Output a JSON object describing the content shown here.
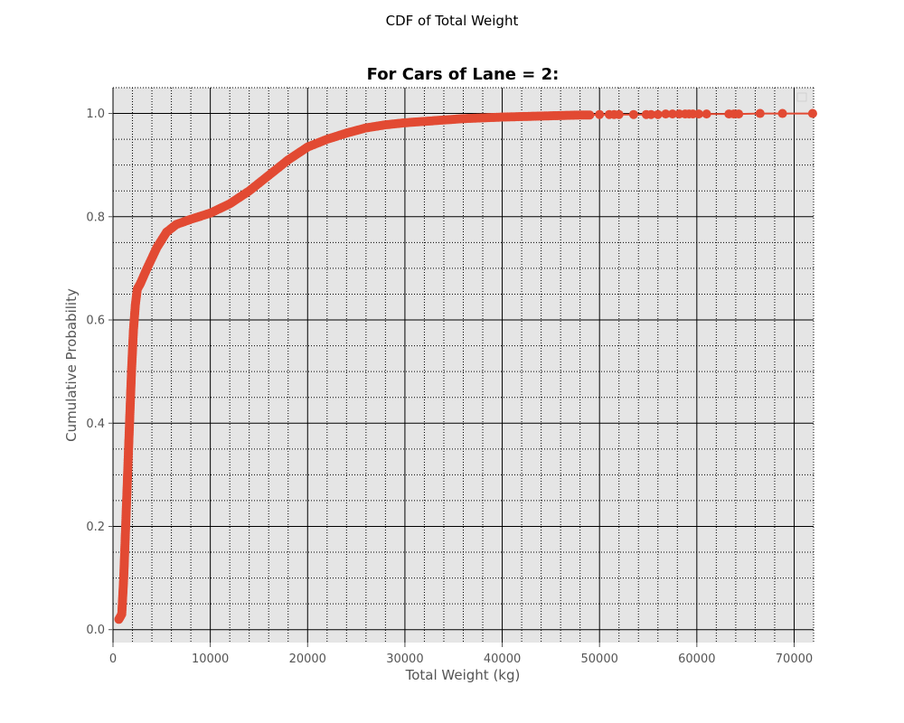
{
  "suptitle": "CDF of Total Weight",
  "colors": {
    "series": "#e24a33",
    "plot_bg": "#e5e5e5",
    "grid": "#000000",
    "tick_text": "#555555"
  },
  "chart_data": {
    "type": "line",
    "title": "For Cars of Lane = 2:",
    "xlabel": "Total Weight (kg)",
    "ylabel": "Cumulative Probability",
    "xlim": [
      0,
      72000
    ],
    "ylim": [
      -0.025,
      1.05
    ],
    "xticks": [
      0,
      10000,
      20000,
      30000,
      40000,
      50000,
      60000,
      70000
    ],
    "xtick_labels": [
      "0",
      "10000",
      "20000",
      "30000",
      "40000",
      "50000",
      "60000",
      "70000"
    ],
    "yticks": [
      0.0,
      0.2,
      0.4,
      0.6,
      0.8,
      1.0
    ],
    "ytick_labels": [
      "0.0",
      "0.2",
      "0.4",
      "0.6",
      "0.8",
      "1.0"
    ],
    "grid": {
      "major": "solid",
      "minor": "dotted"
    },
    "legend": {
      "location": "top-right",
      "entries": []
    },
    "marker": "circle",
    "series": [
      {
        "x": [
          600,
          900,
          1100,
          1300,
          1500,
          1700,
          1900,
          2100,
          2300,
          2500,
          2800,
          3500,
          4500,
          5500,
          6500,
          8000,
          10000,
          12000,
          14000,
          16000,
          18000,
          20000,
          22000,
          24000,
          26000,
          28000,
          30000,
          33000,
          36000,
          40000,
          44000,
          48000,
          49000,
          50000,
          51000,
          51500,
          52000,
          53500,
          54800,
          55300,
          56000,
          56800,
          57500,
          58200,
          58800,
          59200,
          59600,
          60200,
          61000,
          63300,
          63800,
          64300,
          66500,
          68800,
          71900
        ],
        "y": [
          0.02,
          0.03,
          0.1,
          0.2,
          0.3,
          0.4,
          0.5,
          0.58,
          0.63,
          0.66,
          0.67,
          0.7,
          0.74,
          0.77,
          0.785,
          0.795,
          0.807,
          0.825,
          0.85,
          0.88,
          0.91,
          0.935,
          0.95,
          0.962,
          0.972,
          0.978,
          0.982,
          0.986,
          0.99,
          0.993,
          0.995,
          0.997,
          0.997,
          0.998,
          0.998,
          0.998,
          0.998,
          0.998,
          0.998,
          0.998,
          0.998,
          0.999,
          0.999,
          0.999,
          0.999,
          0.999,
          0.999,
          0.999,
          0.999,
          0.999,
          0.999,
          0.999,
          1.0,
          1.0,
          1.0
        ]
      }
    ]
  }
}
